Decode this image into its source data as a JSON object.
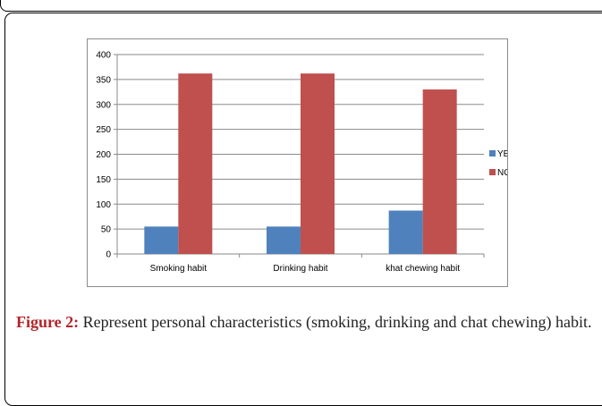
{
  "caption": {
    "label": "Figure 2:",
    "text": " Represent personal characteristics (smoking, drinking and chat chewing) habit."
  },
  "chart_data": {
    "type": "bar",
    "categories": [
      "Smoking habit",
      "Drinking habit",
      "khat chewing habit"
    ],
    "series": [
      {
        "name": "YES",
        "values": [
          55,
          55,
          87
        ],
        "color": "#4f81bd"
      },
      {
        "name": "NO",
        "values": [
          362,
          362,
          330
        ],
        "color": "#c0504d"
      }
    ],
    "ylim": [
      0,
      400
    ],
    "yticks": [
      "0",
      "50",
      "100",
      "150",
      "200",
      "250",
      "300",
      "350",
      "400"
    ],
    "grid": true,
    "legend_position": "right"
  }
}
